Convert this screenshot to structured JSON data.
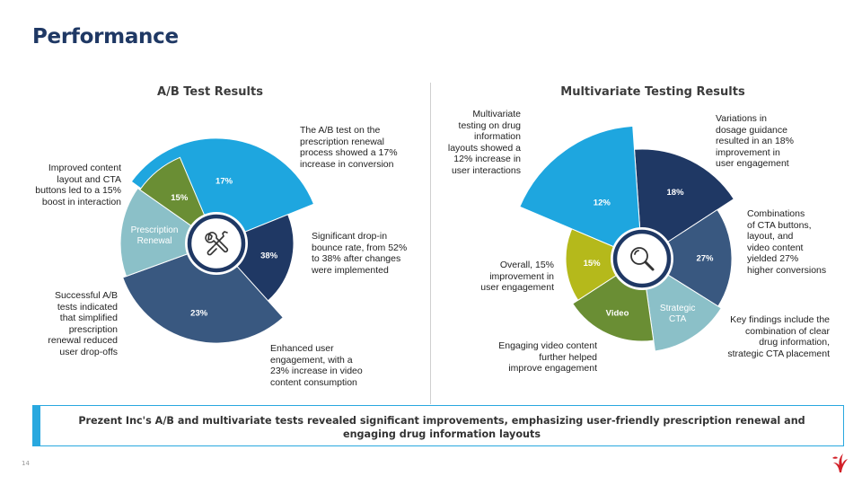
{
  "slide": {
    "title": "Performance",
    "page_number": "14",
    "logo_icon": "cigna-tree-logo-icon"
  },
  "colors": {
    "title": "#1f3864",
    "accent_bar": "#29a8df",
    "navy": "#1f3864",
    "slate": "#395880",
    "bright_blue": "#1ea6df",
    "green": "#6a8e34",
    "light_teal": "#8bc0c8",
    "lime": "#b5b91b",
    "brand_red": "#d21f27"
  },
  "ab_test": {
    "title": "A/B Test Results",
    "center_icon": "tools-icon",
    "segments": [
      {
        "label": "17%",
        "color": "#1ea6df"
      },
      {
        "label": "38%",
        "color": "#1f3864"
      },
      {
        "label": "23%",
        "color": "#395880"
      },
      {
        "label": "Prescription\nRenewal",
        "color": "#8bc0c8"
      },
      {
        "label": "15%",
        "color": "#6a8e34"
      }
    ],
    "annotations": {
      "top_right": "The A/B test on the\nprescription renewal\nprocess showed a 17%\nincrease in conversion",
      "right": "Significant drop-in\nbounce rate, from 52%\nto 38% after changes\nwere implemented",
      "bottom_right": "Enhanced user\nengagement, with a\n23% increase in video\ncontent consumption",
      "bottom_left": "Successful A/B\ntests indicated\nthat simplified\nprescription\nrenewal reduced\nuser drop-offs",
      "top_left": "Improved content\nlayout and CTA\nbuttons led to a 15%\nboost in interaction"
    }
  },
  "multivariate": {
    "title": "Multivariate Testing Results",
    "center_icon": "magnifier-icon",
    "segments": [
      {
        "label": "18%",
        "color": "#1f3864"
      },
      {
        "label": "27%",
        "color": "#395880"
      },
      {
        "label": "Strategic\nCTA",
        "color": "#8bc0c8"
      },
      {
        "label": "Video",
        "color": "#6a8e34"
      },
      {
        "label": "15%",
        "color": "#b5b91b"
      },
      {
        "label": "12%",
        "color": "#1ea6df"
      }
    ],
    "annotations": {
      "top_left": "Multivariate\ntesting on drug\ninformation\nlayouts showed a\n12% increase in\nuser interactions",
      "top_right": "Variations in\ndosage guidance\nresulted in an 18%\nimprovement in\nuser engagement",
      "right": "Combinations\nof CTA buttons,\nlayout, and\nvideo content\nyielded 27%\nhigher conversions",
      "bottom_right": "Key findings include the\ncombination of clear\ndrug information,\nstrategic CTA placement",
      "bottom_left": "Engaging video content\nfurther helped\nimprove engagement",
      "left": "Overall, 15%\nimprovement in\nuser engagement"
    }
  },
  "summary": {
    "text": "Prezent Inc's A/B and multivariate tests revealed significant improvements, emphasizing user-friendly prescription renewal and engaging drug information layouts"
  }
}
